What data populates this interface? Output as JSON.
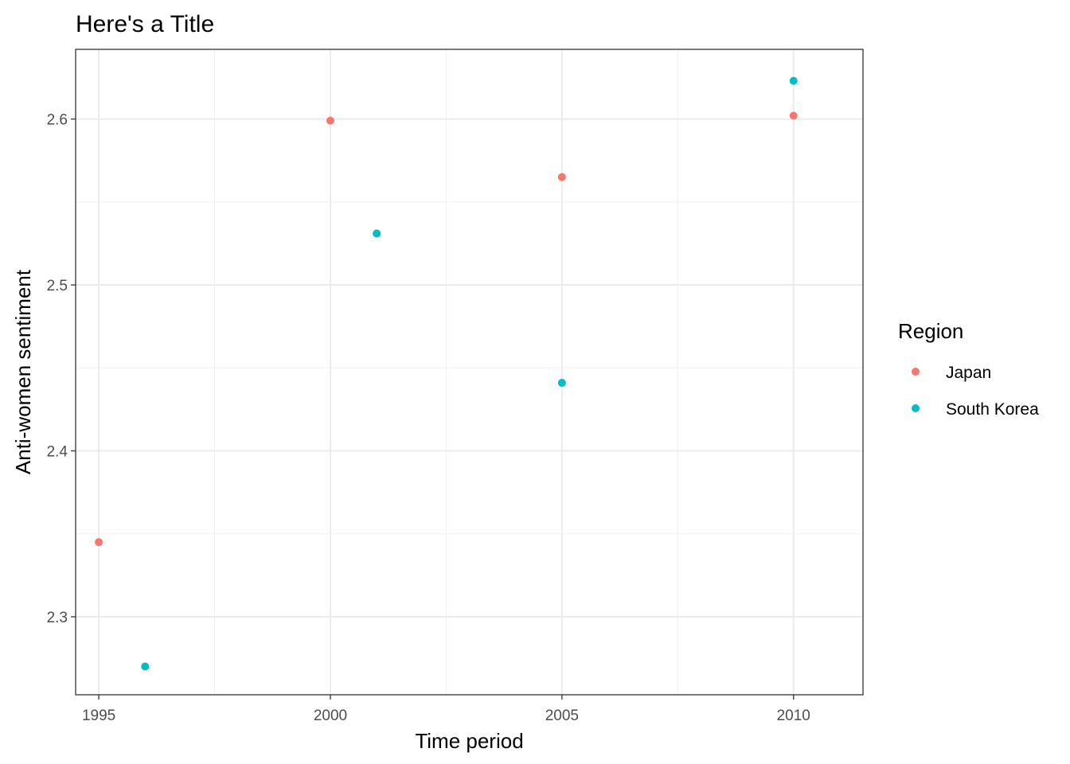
{
  "chart_data": {
    "type": "scatter",
    "title": "Here's a Title",
    "xlabel": "Time period",
    "ylabel": "Anti-women sentiment",
    "xlim": [
      1994.5,
      2011.5
    ],
    "ylim": [
      2.253,
      2.642
    ],
    "x_ticks": [
      1995,
      2000,
      2005,
      2010
    ],
    "y_ticks": [
      2.3,
      2.4,
      2.5,
      2.6
    ],
    "x_minor": [
      1997.5,
      2002.5,
      2007.5
    ],
    "y_minor": [
      2.35,
      2.45,
      2.55
    ],
    "grid": true,
    "legend": {
      "title": "Region",
      "position": "right"
    },
    "series": [
      {
        "name": "Japan",
        "color": "#F8766D",
        "x": [
          1995,
          2000,
          2005,
          2010
        ],
        "y": [
          2.345,
          2.599,
          2.565,
          2.602
        ]
      },
      {
        "name": "South Korea",
        "color": "#00BFC4",
        "x": [
          1996,
          2001,
          2005,
          2010
        ],
        "y": [
          2.27,
          2.531,
          2.441,
          2.623
        ]
      }
    ]
  }
}
